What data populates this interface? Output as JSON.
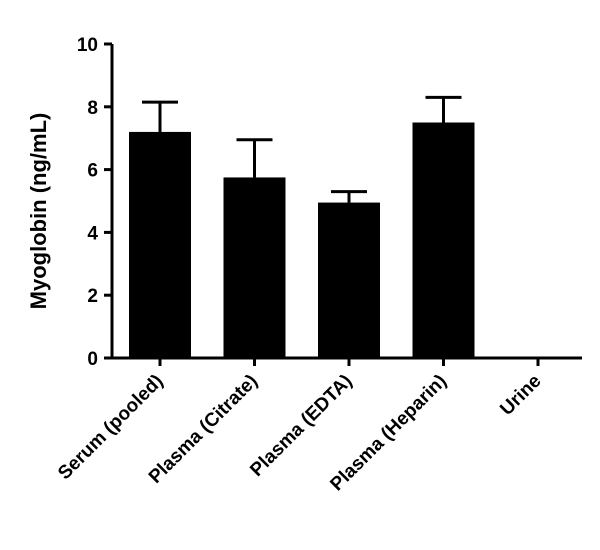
{
  "chart_data": {
    "type": "bar",
    "categories": [
      "Serum (pooled)",
      "Plasma (Citrate)",
      "Plasma (EDTA)",
      "Plasma (Heparin)",
      "Urine"
    ],
    "values": [
      7.2,
      5.75,
      4.95,
      7.5,
      0
    ],
    "error_upper": [
      8.15,
      6.95,
      5.3,
      8.3,
      null
    ],
    "title": "",
    "xlabel": "",
    "ylabel": "Myoglobin (ng/mL)",
    "ylim": [
      0,
      10
    ],
    "yticks": [
      "0",
      "2",
      "4",
      "6",
      "8",
      "10"
    ],
    "grid": false,
    "legend": "none",
    "bar_color": "#000000",
    "error_bar_style": "one-sided upward cap"
  }
}
